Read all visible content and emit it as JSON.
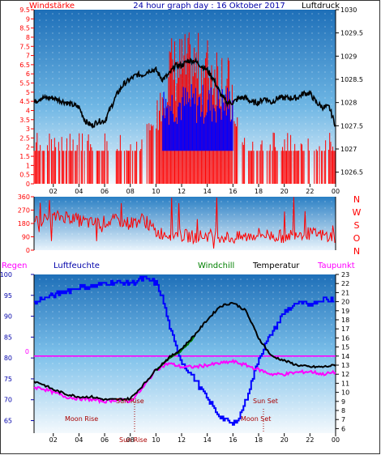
{
  "header": {
    "left": "Windstärke",
    "center": "24 hour graph day : 16 Oktober 2017",
    "right": "Luftdruck"
  },
  "top_left_ticks": [
    "0",
    "0.5",
    "1",
    "1.5",
    "2",
    "2.5",
    "3",
    "3.5",
    "4",
    "4.5",
    "5",
    "5.5",
    "6",
    "6.5",
    "7",
    "7.5",
    "8",
    "8.5",
    "9",
    "9.5"
  ],
  "top_right_ticks": [
    "1026.5",
    "1027",
    "1027.5",
    "1028",
    "1028.5",
    "1029",
    "1029.5",
    "1030"
  ],
  "x_ticks": [
    "02",
    "04",
    "06",
    "08",
    "10",
    "12",
    "14",
    "16",
    "18",
    "20",
    "22",
    "00"
  ],
  "mid_left_ticks": [
    "0",
    "90",
    "180",
    "270",
    "360"
  ],
  "mid_right_letters": [
    "N",
    "W",
    "S",
    "O",
    "N"
  ],
  "bottom_header": {
    "regen": "Regen",
    "luftfeuchte": "Luftfeuchte",
    "windchill": "Windchill",
    "temperatur": "Temperatur",
    "taupunkt": "Taupunkt"
  },
  "bottom_left_ticks": [
    "65",
    "70",
    "75",
    "80",
    "85",
    "90",
    "95",
    "100"
  ],
  "bottom_rain_tick": "0",
  "bottom_right_ticks": [
    "6",
    "7",
    "8",
    "9",
    "10",
    "11",
    "12",
    "13",
    "14",
    "15",
    "16",
    "17",
    "18",
    "19",
    "20",
    "21",
    "22",
    "23"
  ],
  "annotations": {
    "moon_rise": "Moon Rise",
    "sun_rise": "Sun Rise",
    "sun_set": "Sun Set",
    "moon_set": "Moon Set",
    "sun_rise_axis": "Sun Rise"
  },
  "colors": {
    "wind": "#ff0000",
    "pressure": "#000000",
    "gust": "#0000ff",
    "direction": "#ff0000",
    "humidity": "#0000ff",
    "temperature": "#000000",
    "windchill": "#008000",
    "dewpoint": "#ff00ff",
    "rain": "#ff00ff",
    "title": "#0000aa"
  },
  "chart_data": [
    {
      "type": "line",
      "title": "24 hour graph day : 16 Oktober 2017",
      "ylabel": "Windstärke",
      "y2label": "Luftdruck",
      "ylim": [
        0,
        9.5
      ],
      "y2lim": [
        1026.25,
        1030
      ],
      "x_unit": "hour",
      "xlim": [
        0.5,
        24
      ],
      "series": [
        {
          "name": "Luftdruck",
          "axis": "right",
          "x": [
            0.5,
            1,
            2,
            3,
            4,
            4.5,
            5,
            5.5,
            6,
            6.5,
            7,
            7.5,
            8,
            8.5,
            9,
            9.5,
            10,
            10.5,
            11,
            11.5,
            12,
            12.5,
            13,
            13.5,
            14,
            14.5,
            15,
            15.5,
            16,
            16.5,
            17,
            17.5,
            18,
            18.5,
            19,
            19.5,
            20,
            20.5,
            21,
            21.5,
            22,
            22.5,
            23,
            23.5,
            24
          ],
          "values": [
            1028.0,
            1028.1,
            1028.1,
            1028.0,
            1027.9,
            1027.6,
            1027.5,
            1027.6,
            1027.6,
            1027.9,
            1028.2,
            1028.4,
            1028.5,
            1028.6,
            1028.6,
            1028.7,
            1028.7,
            1028.5,
            1028.6,
            1028.8,
            1028.8,
            1028.9,
            1028.9,
            1028.8,
            1028.7,
            1028.5,
            1028.2,
            1028.0,
            1028.0,
            1028.1,
            1028.1,
            1028.0,
            1028.0,
            1028.1,
            1028.0,
            1028.1,
            1028.1,
            1028.1,
            1028.1,
            1028.2,
            1028.2,
            1028.0,
            1027.9,
            1027.9,
            1027.5
          ]
        },
        {
          "name": "Windstärke",
          "axis": "left",
          "x": [
            0.5,
            1,
            2,
            3,
            4,
            5,
            6,
            7,
            8,
            9,
            10,
            11,
            12,
            13,
            14,
            15,
            16,
            17,
            18,
            19,
            20,
            21,
            22,
            23,
            24
          ],
          "values": [
            1.8,
            1.8,
            1.8,
            1.8,
            1.8,
            1.8,
            1.8,
            1.8,
            1.8,
            1.8,
            3.6,
            5.4,
            5.5,
            5.5,
            5.4,
            5.4,
            3.6,
            1.8,
            1.8,
            1.8,
            1.8,
            1.8,
            1.8,
            1.8,
            1.8
          ]
        }
      ]
    },
    {
      "type": "line",
      "title": "",
      "ylim": [
        0,
        360
      ],
      "yticks": [
        0,
        90,
        180,
        270,
        360
      ],
      "x_unit": "hour",
      "series": [
        {
          "name": "",
          "x": [
            0.5,
            1,
            2,
            3,
            4,
            5,
            6,
            7,
            8,
            9,
            10,
            11,
            12,
            13,
            14,
            15,
            16,
            17,
            18,
            19,
            20,
            21,
            22,
            23,
            24
          ],
          "values": [
            180,
            200,
            220,
            230,
            200,
            180,
            190,
            200,
            180,
            210,
            120,
            110,
            100,
            90,
            100,
            95,
            80,
            90,
            110,
            100,
            90,
            120,
            110,
            100,
            90
          ]
        }
      ]
    },
    {
      "type": "line",
      "title": "",
      "ylim": [
        62,
        100
      ],
      "y2lim": [
        5.5,
        23
      ],
      "x_unit": "hour",
      "series": [
        {
          "name": "Luftfeuchte",
          "axis": "left",
          "x": [
            0.5,
            1,
            2,
            3,
            4,
            5,
            6,
            7,
            8,
            9,
            10,
            10.5,
            11,
            11.5,
            12,
            13,
            14,
            15,
            15.5,
            16,
            16.5,
            17,
            17.5,
            18,
            19,
            20,
            21,
            22,
            23,
            24
          ],
          "values": [
            93,
            94,
            95,
            96,
            97,
            97,
            98,
            98,
            98,
            99,
            98,
            94,
            88,
            83,
            79,
            75,
            70,
            66,
            65,
            64,
            66,
            70,
            75,
            80,
            86,
            91,
            93,
            93,
            94,
            94
          ]
        },
        {
          "name": "Temperatur",
          "axis": "right",
          "x": [
            0.5,
            1,
            2,
            3,
            4,
            5,
            6,
            7,
            8,
            9,
            10,
            11,
            12,
            13,
            14,
            15,
            16,
            17,
            18,
            19,
            20,
            21,
            22,
            23,
            24
          ],
          "values": [
            11.2,
            11.0,
            10.3,
            9.8,
            9.5,
            9.5,
            9.2,
            9.2,
            9.3,
            10.8,
            12.5,
            13.8,
            14.8,
            16.3,
            18.0,
            19.5,
            19.9,
            19.0,
            16.0,
            14.0,
            13.5,
            13.0,
            12.8,
            12.8,
            13.0
          ]
        },
        {
          "name": "Taupunkt",
          "axis": "right",
          "x": [
            0.5,
            1,
            2,
            3,
            4,
            5,
            6,
            7,
            8,
            9,
            10,
            11,
            12,
            13,
            14,
            15,
            16,
            17,
            18,
            19,
            20,
            21,
            22,
            23,
            24
          ],
          "values": [
            10.5,
            10.5,
            10.0,
            9.5,
            9.3,
            9.2,
            9.0,
            9.2,
            9.0,
            10.5,
            12.5,
            13.2,
            12.8,
            12.8,
            13.0,
            13.2,
            13.4,
            13.0,
            12.5,
            12.0,
            12.0,
            12.2,
            12.3,
            12.0,
            12.2
          ]
        },
        {
          "name": "Windchill",
          "axis": "right",
          "x": [
            10,
            11,
            12,
            13
          ],
          "values": [
            12.4,
            13.7,
            14.6,
            16.1
          ]
        },
        {
          "name": "Regen",
          "axis": "right",
          "x": [
            0.5,
            24
          ],
          "values": [
            14,
            14
          ]
        }
      ]
    }
  ]
}
